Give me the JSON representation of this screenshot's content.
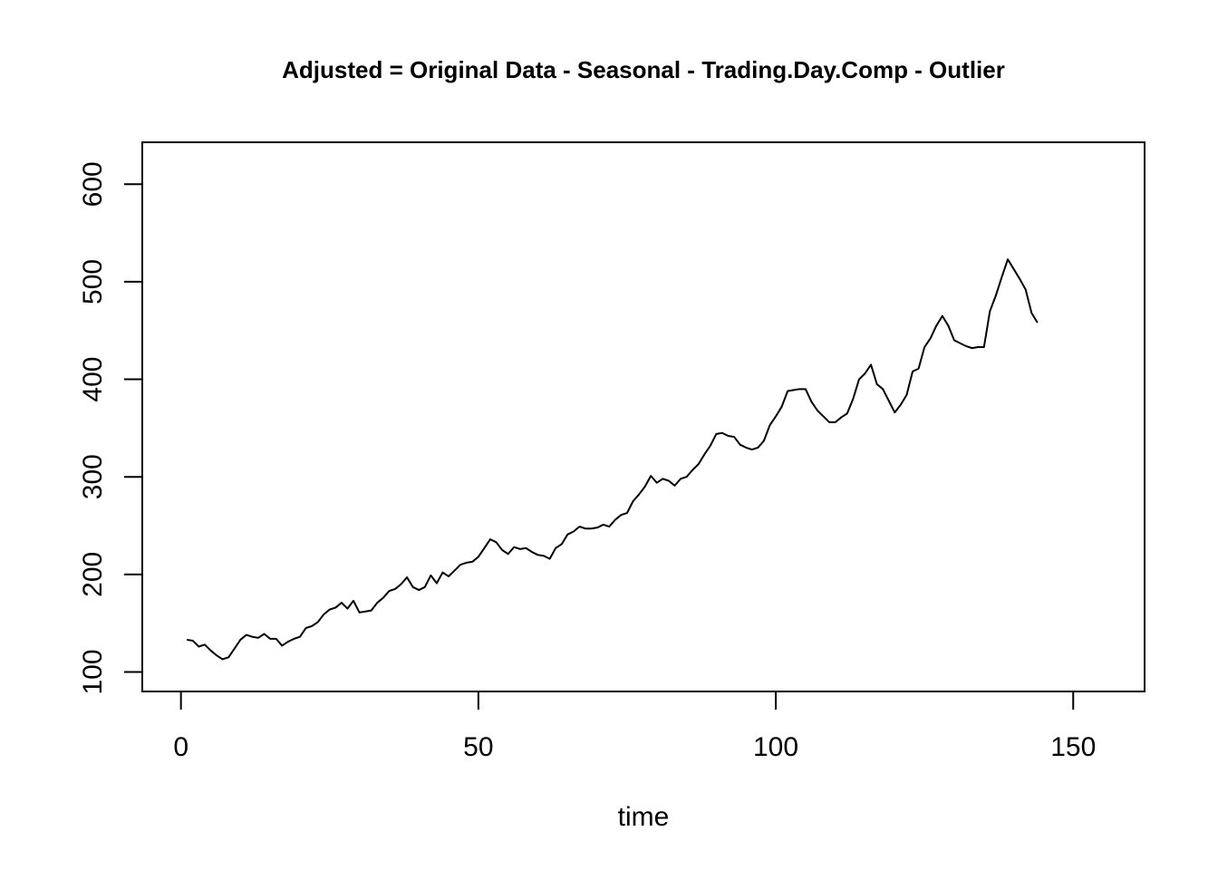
{
  "chart_data": {
    "type": "line",
    "title": "Adjusted = Original Data - Seasonal - Trading.Day.Comp - Outlier",
    "xlabel": "time",
    "ylabel": "",
    "xlim": [
      -6.5,
      162
    ],
    "ylim": [
      80,
      643
    ],
    "xticks": [
      0,
      50,
      100,
      150
    ],
    "yticks": [
      100,
      200,
      300,
      400,
      500,
      600
    ],
    "xtick_labels": [
      "0",
      "50",
      "100",
      "150"
    ],
    "ytick_labels": [
      "100",
      "200",
      "300",
      "400",
      "500",
      "600"
    ],
    "grid": false,
    "color": "#000000",
    "x": [
      1,
      2,
      3,
      4,
      5,
      6,
      7,
      8,
      9,
      10,
      11,
      12,
      13,
      14,
      15,
      16,
      17,
      18,
      19,
      20,
      21,
      22,
      23,
      24,
      25,
      26,
      27,
      28,
      29,
      30,
      31,
      32,
      33,
      34,
      35,
      36,
      37,
      38,
      39,
      40,
      41,
      42,
      43,
      44,
      45,
      46,
      47,
      48,
      49,
      50,
      51,
      52,
      53,
      54,
      55,
      56,
      57,
      58,
      59,
      60,
      61,
      62,
      63,
      64,
      65,
      66,
      67,
      68,
      69,
      70,
      71,
      72,
      73,
      74,
      75,
      76,
      77,
      78,
      79,
      80,
      81,
      82,
      83,
      84,
      85,
      86,
      87,
      88,
      89,
      90,
      91,
      92,
      93,
      94,
      95,
      96,
      97,
      98,
      99,
      100,
      101,
      102,
      103,
      104,
      105,
      106,
      107,
      108,
      109,
      110,
      111,
      112,
      113,
      114,
      115,
      116,
      117,
      118,
      119,
      120,
      121,
      122,
      123,
      124,
      125,
      126,
      127,
      128,
      129,
      130,
      131,
      132,
      133,
      134,
      135,
      136,
      137,
      138,
      139,
      140,
      141,
      142,
      143,
      144
    ],
    "values": [
      133,
      132,
      126,
      128,
      122,
      117,
      113,
      115,
      124,
      133,
      138,
      136,
      135,
      139,
      134,
      134,
      127,
      131,
      134,
      136,
      145,
      147,
      151,
      159,
      164,
      166,
      171,
      165,
      173,
      161,
      162,
      163,
      171,
      176,
      183,
      185,
      190,
      197,
      187,
      184,
      187,
      199,
      191,
      202,
      198,
      204,
      210,
      212,
      213,
      218,
      227,
      236,
      233,
      225,
      221,
      228,
      226,
      227,
      223,
      220,
      219,
      216,
      227,
      231,
      241,
      244,
      249,
      247,
      247,
      248,
      251,
      249,
      256,
      261,
      263,
      275,
      282,
      290,
      301,
      294,
      298,
      296,
      291,
      298,
      300,
      307,
      313,
      323,
      332,
      344,
      345,
      342,
      341,
      333,
      330,
      328,
      330,
      337,
      353,
      362,
      372,
      388,
      389,
      390,
      390,
      377,
      368,
      362,
      356,
      356,
      361,
      365,
      380,
      400,
      406,
      415,
      395,
      390,
      378,
      366,
      374,
      384,
      408,
      411,
      433,
      442,
      455,
      465,
      455,
      440,
      437,
      434,
      432,
      433,
      433,
      470,
      486,
      505,
      523,
      513,
      503,
      492,
      468,
      458
    ]
  }
}
